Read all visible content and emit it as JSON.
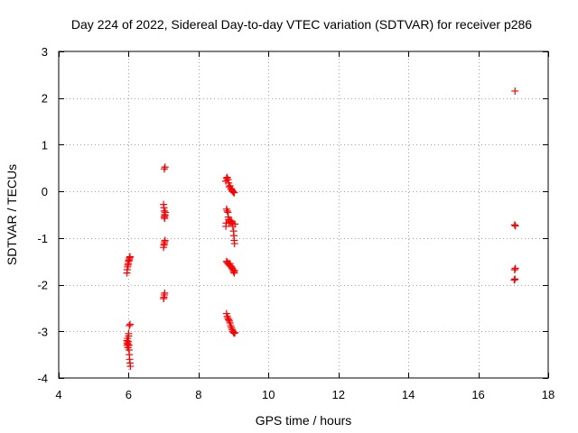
{
  "chart_data": {
    "type": "scatter",
    "title": "Day 224 of 2022, Sidereal Day-to-day VTEC variation (SDTVAR) for receiver p286",
    "xlabel": "GPS time / hours",
    "ylabel": "SDTVAR / TECUs",
    "xlim": [
      4,
      18
    ],
    "ylim": [
      -4,
      3
    ],
    "xticks": [
      4,
      6,
      8,
      10,
      12,
      14,
      16,
      18
    ],
    "yticks": [
      -4,
      -3,
      -2,
      -1,
      0,
      1,
      2,
      3
    ],
    "grid": true,
    "marker": "+",
    "series_color": "#ff0000",
    "grid_color": "#a0a0a0",
    "points": [
      {
        "x": 5.95,
        "y": -1.75
      },
      {
        "x": 5.96,
        "y": -1.68
      },
      {
        "x": 5.97,
        "y": -1.62
      },
      {
        "x": 5.98,
        "y": -1.58
      },
      {
        "x": 5.99,
        "y": -1.55
      },
      {
        "x": 6.0,
        "y": -1.5
      },
      {
        "x": 6.01,
        "y": -1.48
      },
      {
        "x": 6.02,
        "y": -1.45
      },
      {
        "x": 6.03,
        "y": -1.42
      },
      {
        "x": 6.04,
        "y": -1.4
      },
      {
        "x": 5.95,
        "y": -3.2
      },
      {
        "x": 5.96,
        "y": -3.25
      },
      {
        "x": 5.96,
        "y": -3.3
      },
      {
        "x": 5.97,
        "y": -3.15
      },
      {
        "x": 5.98,
        "y": -3.35
      },
      {
        "x": 5.98,
        "y": -3.28
      },
      {
        "x": 5.99,
        "y": -3.22
      },
      {
        "x": 6.0,
        "y": -3.1
      },
      {
        "x": 6.0,
        "y": -3.05
      },
      {
        "x": 6.01,
        "y": -3.3
      },
      {
        "x": 6.01,
        "y": -3.4
      },
      {
        "x": 6.02,
        "y": -3.5
      },
      {
        "x": 6.03,
        "y": -3.6
      },
      {
        "x": 6.04,
        "y": -3.68
      },
      {
        "x": 6.05,
        "y": -3.75
      },
      {
        "x": 6.02,
        "y": -2.88
      },
      {
        "x": 6.04,
        "y": -2.85
      },
      {
        "x": 7.02,
        "y": 0.48
      },
      {
        "x": 7.04,
        "y": 0.52
      },
      {
        "x": 7.0,
        "y": -0.28
      },
      {
        "x": 7.01,
        "y": -0.35
      },
      {
        "x": 7.02,
        "y": -0.42
      },
      {
        "x": 7.03,
        "y": -0.5
      },
      {
        "x": 7.02,
        "y": -0.55
      },
      {
        "x": 7.03,
        "y": -0.58
      },
      {
        "x": 7.04,
        "y": -0.52
      },
      {
        "x": 7.05,
        "y": -0.45
      },
      {
        "x": 7.0,
        "y": -1.2
      },
      {
        "x": 7.01,
        "y": -1.15
      },
      {
        "x": 7.02,
        "y": -1.12
      },
      {
        "x": 7.03,
        "y": -1.08
      },
      {
        "x": 7.04,
        "y": -1.05
      },
      {
        "x": 7.0,
        "y": -2.3
      },
      {
        "x": 7.01,
        "y": -2.27
      },
      {
        "x": 7.02,
        "y": -2.22
      },
      {
        "x": 7.03,
        "y": -2.18
      },
      {
        "x": 8.78,
        "y": 0.22
      },
      {
        "x": 8.8,
        "y": 0.28
      },
      {
        "x": 8.82,
        "y": 0.3
      },
      {
        "x": 8.84,
        "y": 0.25
      },
      {
        "x": 8.86,
        "y": 0.18
      },
      {
        "x": 8.88,
        "y": 0.1
      },
      {
        "x": 8.9,
        "y": 0.12
      },
      {
        "x": 8.92,
        "y": 0.06
      },
      {
        "x": 8.94,
        "y": 0.05
      },
      {
        "x": 8.96,
        "y": 0.02
      },
      {
        "x": 8.98,
        "y": 0.0
      },
      {
        "x": 9.0,
        "y": -0.02
      },
      {
        "x": 9.02,
        "y": -0.03
      },
      {
        "x": 8.8,
        "y": -0.38
      },
      {
        "x": 8.82,
        "y": -0.42
      },
      {
        "x": 8.84,
        "y": -0.45
      },
      {
        "x": 8.85,
        "y": -0.55
      },
      {
        "x": 8.86,
        "y": -0.6
      },
      {
        "x": 8.87,
        "y": -0.68
      },
      {
        "x": 8.88,
        "y": -0.65
      },
      {
        "x": 8.9,
        "y": -0.62
      },
      {
        "x": 8.92,
        "y": -0.66
      },
      {
        "x": 8.94,
        "y": -0.64
      },
      {
        "x": 8.96,
        "y": -0.68
      },
      {
        "x": 8.98,
        "y": -0.75
      },
      {
        "x": 9.0,
        "y": -0.85
      },
      {
        "x": 9.01,
        "y": -0.95
      },
      {
        "x": 9.02,
        "y": -1.05
      },
      {
        "x": 9.03,
        "y": -1.12
      },
      {
        "x": 9.04,
        "y": -0.7
      },
      {
        "x": 8.78,
        "y": -0.75
      },
      {
        "x": 8.79,
        "y": -0.68
      },
      {
        "x": 8.8,
        "y": -1.5
      },
      {
        "x": 8.82,
        "y": -1.52
      },
      {
        "x": 8.84,
        "y": -1.55
      },
      {
        "x": 8.86,
        "y": -1.55
      },
      {
        "x": 8.88,
        "y": -1.58
      },
      {
        "x": 8.9,
        "y": -1.55
      },
      {
        "x": 8.92,
        "y": -1.6
      },
      {
        "x": 8.94,
        "y": -1.62
      },
      {
        "x": 8.96,
        "y": -1.65
      },
      {
        "x": 8.98,
        "y": -1.68
      },
      {
        "x": 9.0,
        "y": -1.72
      },
      {
        "x": 9.02,
        "y": -1.75
      },
      {
        "x": 9.03,
        "y": -1.7
      },
      {
        "x": 8.8,
        "y": -2.62
      },
      {
        "x": 8.82,
        "y": -2.68
      },
      {
        "x": 8.84,
        "y": -2.72
      },
      {
        "x": 8.86,
        "y": -2.75
      },
      {
        "x": 8.88,
        "y": -2.78
      },
      {
        "x": 8.9,
        "y": -2.82
      },
      {
        "x": 8.92,
        "y": -2.88
      },
      {
        "x": 8.94,
        "y": -2.92
      },
      {
        "x": 8.96,
        "y": -2.96
      },
      {
        "x": 8.98,
        "y": -3.0
      },
      {
        "x": 9.0,
        "y": -3.02
      },
      {
        "x": 9.02,
        "y": -3.04
      },
      {
        "x": 9.04,
        "y": -3.03
      },
      {
        "x": 17.05,
        "y": 2.15
      },
      {
        "x": 17.04,
        "y": -0.72
      },
      {
        "x": 17.06,
        "y": -0.74
      },
      {
        "x": 17.04,
        "y": -1.68
      },
      {
        "x": 17.06,
        "y": -1.65
      },
      {
        "x": 17.03,
        "y": -1.9
      },
      {
        "x": 17.05,
        "y": -1.88
      }
    ]
  }
}
